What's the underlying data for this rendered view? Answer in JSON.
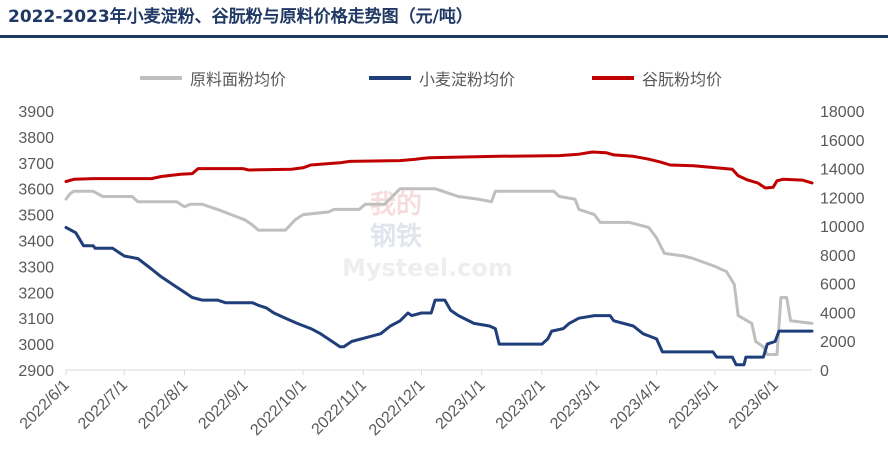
{
  "chart_data": {
    "type": "line",
    "title": "2022-2023年小麦淀粉、谷朊粉与原料价格走势图（元/吨）",
    "legend_position": "top",
    "grid": false,
    "watermark": [
      "我的",
      "钢铁",
      "Mysteel.com"
    ],
    "x_range": [
      "2022-06-01",
      "2023-06-20"
    ],
    "x_tick_labels": [
      "2022/6/1",
      "2022/7/1",
      "2022/8/1",
      "2022/9/1",
      "2022/10/1",
      "2022/11/1",
      "2022/12/1",
      "2023/1/1",
      "2023/2/1",
      "2023/3/1",
      "2023/4/1",
      "2023/5/1",
      "2023/6/1"
    ],
    "y_left": {
      "min": 2900,
      "max": 3900,
      "step": 100,
      "ticks": [
        "2900",
        "3000",
        "3100",
        "3200",
        "3300",
        "3400",
        "3500",
        "3600",
        "3700",
        "3800",
        "3900"
      ]
    },
    "y_right": {
      "min": 0,
      "max": 18000,
      "step": 2000,
      "ticks": [
        "0",
        "2000",
        "4000",
        "6000",
        "8000",
        "10000",
        "12000",
        "14000",
        "16000",
        "18000"
      ]
    },
    "series": [
      {
        "name": "原料面粉均价",
        "axis": "left",
        "color": "#bfbfbf",
        "points": [
          [
            "2022-06-01",
            3560
          ],
          [
            "2022-06-03",
            3580
          ],
          [
            "2022-06-05",
            3590
          ],
          [
            "2022-06-15",
            3590
          ],
          [
            "2022-06-20",
            3570
          ],
          [
            "2022-07-05",
            3570
          ],
          [
            "2022-07-08",
            3550
          ],
          [
            "2022-07-28",
            3550
          ],
          [
            "2022-08-01",
            3530
          ],
          [
            "2022-08-04",
            3540
          ],
          [
            "2022-08-10",
            3540
          ],
          [
            "2022-08-18",
            3520
          ],
          [
            "2022-08-25",
            3500
          ],
          [
            "2022-09-01",
            3480
          ],
          [
            "2022-09-05",
            3460
          ],
          [
            "2022-09-08",
            3440
          ],
          [
            "2022-09-22",
            3440
          ],
          [
            "2022-09-27",
            3480
          ],
          [
            "2022-10-01",
            3500
          ],
          [
            "2022-10-14",
            3510
          ],
          [
            "2022-10-17",
            3520
          ],
          [
            "2022-10-30",
            3520
          ],
          [
            "2022-11-02",
            3540
          ],
          [
            "2022-11-12",
            3540
          ],
          [
            "2022-11-16",
            3570
          ],
          [
            "2022-11-20",
            3600
          ],
          [
            "2022-12-08",
            3600
          ],
          [
            "2022-12-12",
            3590
          ],
          [
            "2022-12-20",
            3570
          ],
          [
            "2022-12-30",
            3560
          ],
          [
            "2023-01-06",
            3550
          ],
          [
            "2023-01-08",
            3590
          ],
          [
            "2023-02-07",
            3590
          ],
          [
            "2023-02-10",
            3570
          ],
          [
            "2023-02-18",
            3560
          ],
          [
            "2023-02-20",
            3520
          ],
          [
            "2023-02-28",
            3500
          ],
          [
            "2023-03-03",
            3470
          ],
          [
            "2023-03-18",
            3470
          ],
          [
            "2023-03-28",
            3450
          ],
          [
            "2023-04-01",
            3410
          ],
          [
            "2023-04-05",
            3350
          ],
          [
            "2023-04-15",
            3340
          ],
          [
            "2023-04-20",
            3330
          ],
          [
            "2023-05-01",
            3300
          ],
          [
            "2023-05-07",
            3280
          ],
          [
            "2023-05-11",
            3230
          ],
          [
            "2023-05-13",
            3110
          ],
          [
            "2023-05-20",
            3080
          ],
          [
            "2023-05-22",
            3010
          ],
          [
            "2023-05-26",
            2990
          ],
          [
            "2023-05-28",
            2960
          ],
          [
            "2023-05-30",
            2960
          ],
          [
            "2023-06-02",
            2960
          ],
          [
            "2023-06-04",
            3180
          ],
          [
            "2023-06-07",
            3180
          ],
          [
            "2023-06-09",
            3090
          ],
          [
            "2023-06-20",
            3080
          ]
        ]
      },
      {
        "name": "小麦淀粉均价",
        "axis": "left",
        "color": "#1f3e7a",
        "points": [
          [
            "2022-06-01",
            3450
          ],
          [
            "2022-06-06",
            3430
          ],
          [
            "2022-06-10",
            3380
          ],
          [
            "2022-06-15",
            3380
          ],
          [
            "2022-06-16",
            3370
          ],
          [
            "2022-06-25",
            3370
          ],
          [
            "2022-07-01",
            3340
          ],
          [
            "2022-07-08",
            3330
          ],
          [
            "2022-07-15",
            3290
          ],
          [
            "2022-07-20",
            3260
          ],
          [
            "2022-07-28",
            3220
          ],
          [
            "2022-08-01",
            3200
          ],
          [
            "2022-08-05",
            3180
          ],
          [
            "2022-08-10",
            3170
          ],
          [
            "2022-08-18",
            3170
          ],
          [
            "2022-08-22",
            3160
          ],
          [
            "2022-09-05",
            3160
          ],
          [
            "2022-09-08",
            3150
          ],
          [
            "2022-09-12",
            3140
          ],
          [
            "2022-09-16",
            3120
          ],
          [
            "2022-09-22",
            3100
          ],
          [
            "2022-09-28",
            3080
          ],
          [
            "2022-10-05",
            3060
          ],
          [
            "2022-10-10",
            3040
          ],
          [
            "2022-10-16",
            3010
          ],
          [
            "2022-10-20",
            2990
          ],
          [
            "2022-10-22",
            2990
          ],
          [
            "2022-10-26",
            3010
          ],
          [
            "2022-11-05",
            3030
          ],
          [
            "2022-11-10",
            3040
          ],
          [
            "2022-11-15",
            3070
          ],
          [
            "2022-11-20",
            3090
          ],
          [
            "2022-11-24",
            3120
          ],
          [
            "2022-11-26",
            3110
          ],
          [
            "2022-12-01",
            3120
          ],
          [
            "2022-12-06",
            3120
          ],
          [
            "2022-12-08",
            3170
          ],
          [
            "2022-12-13",
            3170
          ],
          [
            "2022-12-16",
            3130
          ],
          [
            "2022-12-20",
            3110
          ],
          [
            "2022-12-28",
            3080
          ],
          [
            "2023-01-05",
            3070
          ],
          [
            "2023-01-08",
            3060
          ],
          [
            "2023-01-10",
            3000
          ],
          [
            "2023-02-01",
            3000
          ],
          [
            "2023-02-04",
            3020
          ],
          [
            "2023-02-06",
            3050
          ],
          [
            "2023-02-12",
            3060
          ],
          [
            "2023-02-15",
            3080
          ],
          [
            "2023-02-20",
            3100
          ],
          [
            "2023-02-28",
            3110
          ],
          [
            "2023-03-08",
            3110
          ],
          [
            "2023-03-10",
            3090
          ],
          [
            "2023-03-20",
            3070
          ],
          [
            "2023-03-25",
            3040
          ],
          [
            "2023-04-01",
            3020
          ],
          [
            "2023-04-04",
            2970
          ],
          [
            "2023-04-30",
            2970
          ],
          [
            "2023-05-02",
            2950
          ],
          [
            "2023-05-10",
            2950
          ],
          [
            "2023-05-12",
            2920
          ],
          [
            "2023-05-16",
            2920
          ],
          [
            "2023-05-17",
            2950
          ],
          [
            "2023-05-26",
            2950
          ],
          [
            "2023-05-28",
            3000
          ],
          [
            "2023-06-01",
            3010
          ],
          [
            "2023-06-03",
            3050
          ],
          [
            "2023-06-20",
            3050
          ]
        ]
      },
      {
        "name": "谷朊粉均价",
        "axis": "right",
        "color": "#c00000",
        "points": [
          [
            "2022-06-01",
            13100
          ],
          [
            "2022-06-05",
            13250
          ],
          [
            "2022-06-15",
            13300
          ],
          [
            "2022-07-15",
            13300
          ],
          [
            "2022-07-20",
            13450
          ],
          [
            "2022-07-30",
            13600
          ],
          [
            "2022-08-05",
            13650
          ],
          [
            "2022-08-08",
            14000
          ],
          [
            "2022-08-31",
            14000
          ],
          [
            "2022-09-03",
            13900
          ],
          [
            "2022-09-25",
            13950
          ],
          [
            "2022-10-01",
            14050
          ],
          [
            "2022-10-05",
            14250
          ],
          [
            "2022-10-20",
            14400
          ],
          [
            "2022-10-25",
            14500
          ],
          [
            "2022-11-20",
            14550
          ],
          [
            "2022-11-28",
            14650
          ],
          [
            "2022-12-01",
            14700
          ],
          [
            "2022-12-05",
            14750
          ],
          [
            "2023-01-10",
            14850
          ],
          [
            "2023-02-10",
            14900
          ],
          [
            "2023-02-20",
            15000
          ],
          [
            "2023-02-27",
            15150
          ],
          [
            "2023-03-06",
            15100
          ],
          [
            "2023-03-10",
            14950
          ],
          [
            "2023-03-20",
            14850
          ],
          [
            "2023-03-28",
            14650
          ],
          [
            "2023-04-03",
            14450
          ],
          [
            "2023-04-08",
            14250
          ],
          [
            "2023-04-20",
            14200
          ],
          [
            "2023-04-28",
            14100
          ],
          [
            "2023-05-10",
            13950
          ],
          [
            "2023-05-13",
            13500
          ],
          [
            "2023-05-18",
            13200
          ],
          [
            "2023-05-23",
            13000
          ],
          [
            "2023-05-27",
            12650
          ],
          [
            "2023-05-31",
            12700
          ],
          [
            "2023-06-02",
            13150
          ],
          [
            "2023-06-05",
            13250
          ],
          [
            "2023-06-15",
            13200
          ],
          [
            "2023-06-20",
            13000
          ]
        ]
      }
    ]
  }
}
